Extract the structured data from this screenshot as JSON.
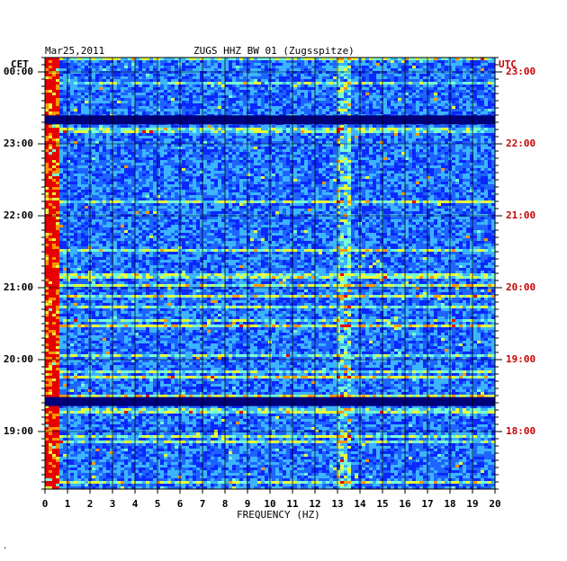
{
  "header": {
    "date": "Mar25,2011",
    "station": "ZUGS HHZ BW 01 (Zugsspitze)"
  },
  "chart_data": {
    "type": "heatmap",
    "title": "ZUGS HHZ BW 01 (Zugsspitze)",
    "date": "Mar25,2011",
    "xlabel": "FREQUENCY (HZ)",
    "x_ticks": [
      "0",
      "1",
      "2",
      "3",
      "4",
      "5",
      "6",
      "7",
      "8",
      "9",
      "10",
      "11",
      "12",
      "13",
      "14",
      "15",
      "16",
      "17",
      "18",
      "19",
      "20"
    ],
    "xlim": [
      0,
      20
    ],
    "left_axis": {
      "label": "CET",
      "ticks": [
        "00:00",
        "23:00",
        "22:00",
        "21:00",
        "20:00",
        "19:00"
      ],
      "color": "#000000"
    },
    "right_axis": {
      "label": "UTC",
      "ticks": [
        "23:00",
        "22:00",
        "21:00",
        "20:00",
        "19:00",
        "18:00"
      ],
      "color": "#cc0000"
    },
    "colormap": [
      "#00007a",
      "#0000c8",
      "#0a28ff",
      "#1e64ff",
      "#3cb4ff",
      "#78ffd2",
      "#e6ff3c",
      "#ff9600",
      "#e60000"
    ],
    "background_color": "#0000a0",
    "features": [
      {
        "note": "dark low-energy horizontal band",
        "time_cet": "23:20",
        "intensity": 0.05
      },
      {
        "note": "dark low-energy horizontal band",
        "time_cet": "19:25",
        "intensity": 0.05
      },
      {
        "note": "persistent elevated energy",
        "freq_range_hz": [
          0,
          0.6
        ],
        "intensity": 0.8
      },
      {
        "note": "persistent elevated energy",
        "freq_range_hz": [
          12.9,
          13.6
        ],
        "intensity": 0.55
      }
    ]
  },
  "footer": {
    "mark": "."
  }
}
